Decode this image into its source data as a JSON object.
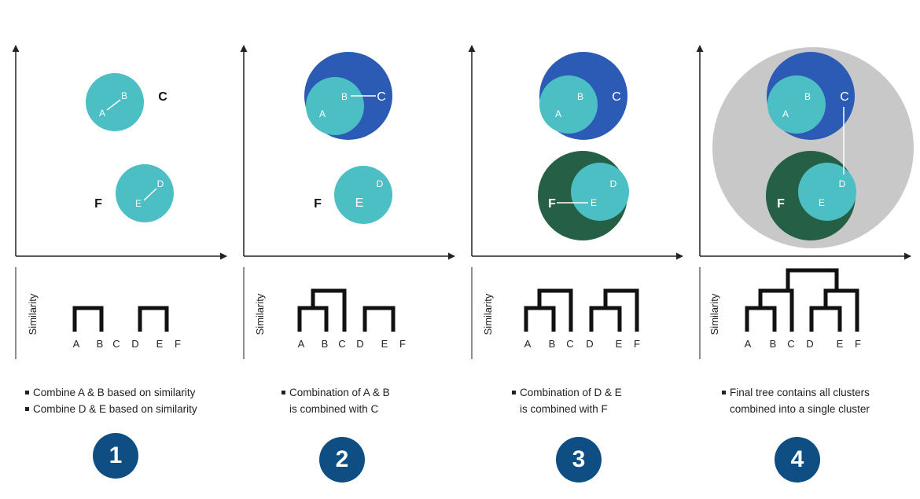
{
  "axis": {
    "similarity_label": "Similarity"
  },
  "letters": {
    "A": "A",
    "B": "B",
    "C": "C",
    "D": "D",
    "E": "E",
    "F": "F"
  },
  "colors": {
    "teal": "#4bbfc4",
    "blue": "#2b5bb4",
    "green": "#255f45",
    "gray": "#c8c8c8",
    "badge": "#0e4e83",
    "dendrogram": "#111111"
  },
  "panels": [
    {
      "step": "1",
      "caption": [
        {
          "text": "Combine A & B based on similarity",
          "bullet": true
        },
        {
          "text": "Combine D & E based on similarity",
          "bullet": true
        }
      ]
    },
    {
      "step": "2",
      "caption": [
        {
          "text": "Combination of A & B",
          "bullet": true
        },
        {
          "text": "is combined with C",
          "bullet": false
        }
      ]
    },
    {
      "step": "3",
      "caption": [
        {
          "text": "Combination of D & E",
          "bullet": true
        },
        {
          "text": "is combined with F",
          "bullet": false
        }
      ]
    },
    {
      "step": "4",
      "caption": [
        {
          "text": "Final tree contains all clusters",
          "bullet": true
        },
        {
          "text": "combined into a single cluster",
          "bullet": false
        }
      ]
    }
  ]
}
